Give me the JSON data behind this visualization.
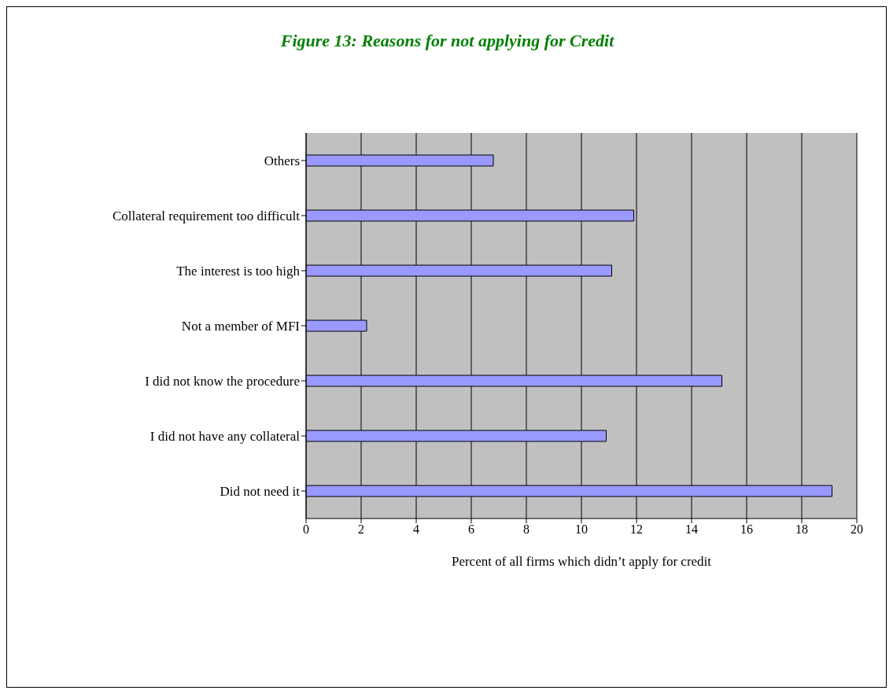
{
  "chart_data": {
    "type": "bar",
    "orientation": "horizontal",
    "title": "Figure 13: Reasons for not applying for Credit",
    "xlabel": "Percent of all firms which didn’t apply for credit",
    "categories": [
      "Others",
      "Collateral requirement too difficult",
      "The interest is too high",
      "Not a member of MFI",
      "I did not know the procedure",
      "I did not have any collateral",
      "Did not need it"
    ],
    "values": [
      6.8,
      11.9,
      11.1,
      2.2,
      15.1,
      10.9,
      19.1
    ],
    "color": "#9999ff",
    "xlim": [
      0,
      20
    ],
    "xticks": [
      0,
      2,
      4,
      6,
      8,
      10,
      12,
      14,
      16,
      18,
      20
    ],
    "grid": "x",
    "legend": false
  }
}
